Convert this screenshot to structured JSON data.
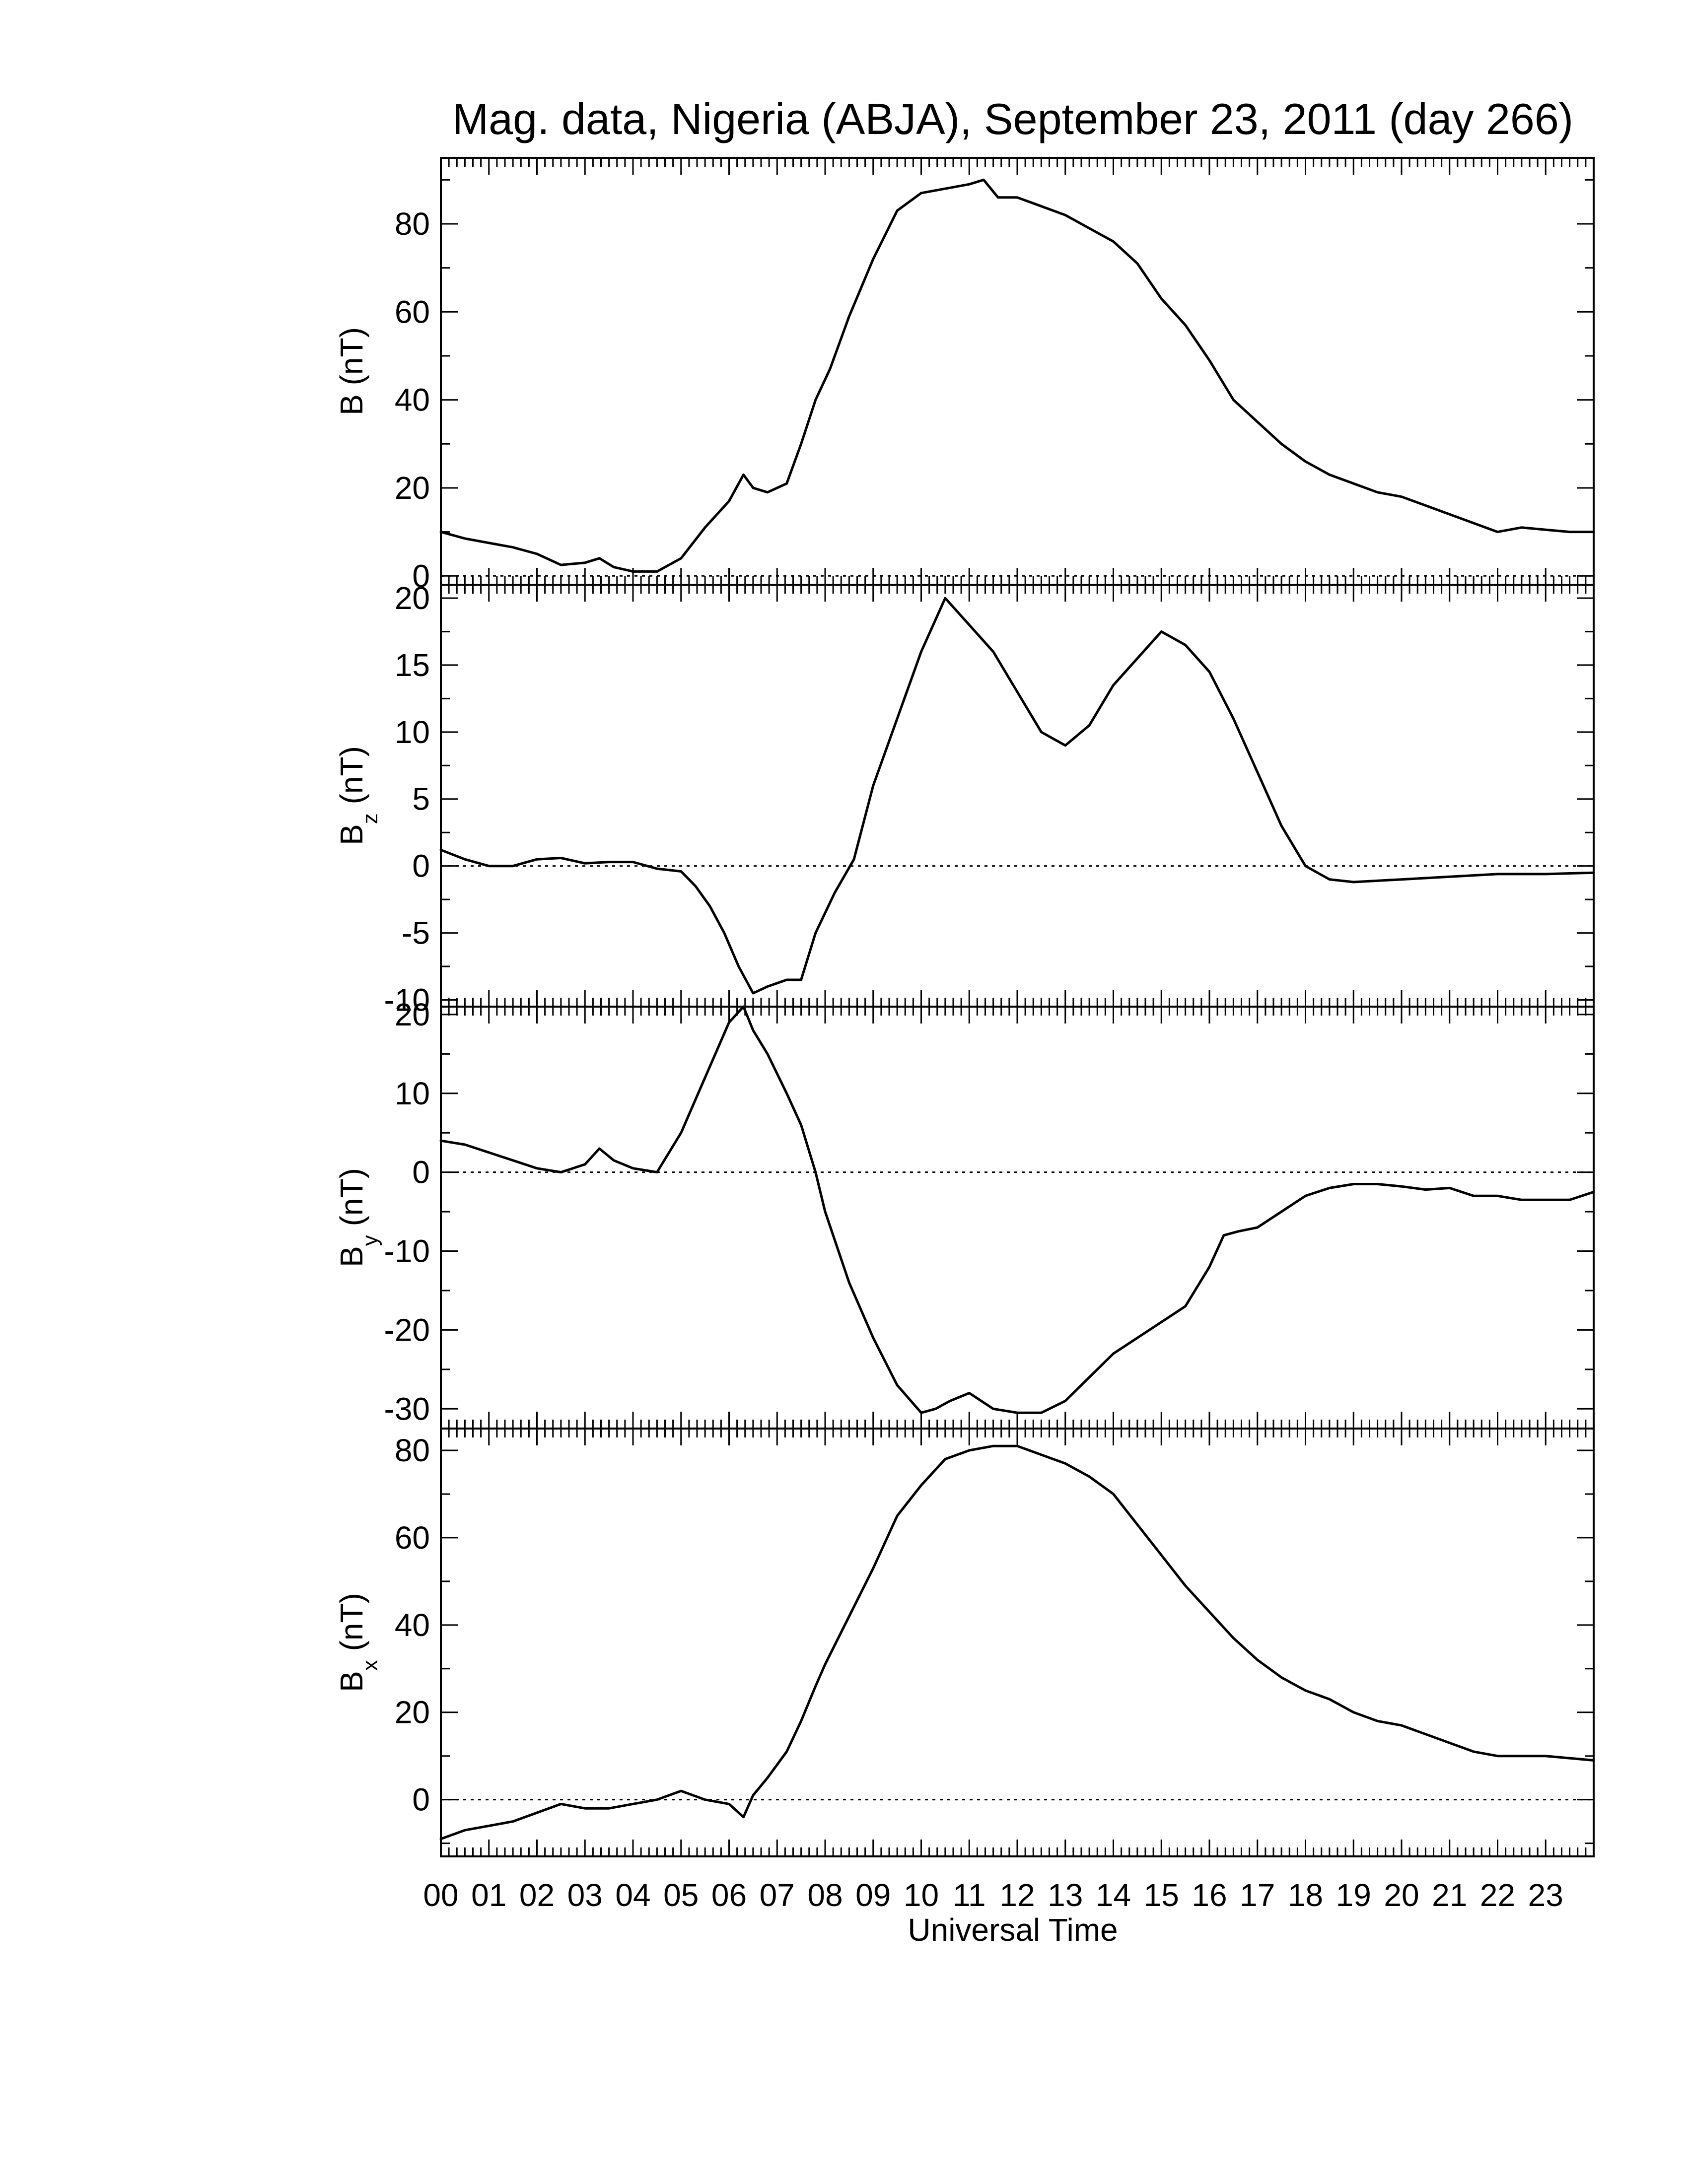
{
  "title": "Mag. data, Nigeria (ABJA), September 23, 2011 (day 266)",
  "xlabel": "Universal Time",
  "x_tick_labels": [
    "00",
    "01",
    "02",
    "03",
    "04",
    "05",
    "06",
    "07",
    "08",
    "09",
    "10",
    "11",
    "12",
    "13",
    "14",
    "15",
    "16",
    "17",
    "18",
    "19",
    "20",
    "21",
    "22",
    "23"
  ],
  "chart_data": [
    {
      "type": "line",
      "ylabel_main": "B",
      "ylabel_sub": "",
      "ylabel_unit": "(nT)",
      "xlim": [
        0,
        24
      ],
      "ylim": [
        -2,
        95
      ],
      "y_ticks": [
        0,
        20,
        40,
        60,
        80
      ],
      "zero_line": true,
      "series": [
        {
          "x": [
            0.0,
            0.5,
            1.0,
            1.5,
            2.0,
            2.5,
            3.0,
            3.3,
            3.6,
            4.0,
            4.5,
            5.0,
            5.5,
            6.0,
            6.3,
            6.5,
            6.8,
            7.2,
            7.5,
            7.8,
            8.1,
            8.5,
            9.0,
            9.5,
            10.0,
            10.5,
            11.0,
            11.3,
            11.6,
            12.0,
            12.5,
            13.0,
            13.5,
            14.0,
            14.5,
            15.0,
            15.5,
            16.0,
            16.5,
            17.0,
            17.5,
            18.0,
            18.5,
            19.0,
            19.5,
            20.0,
            20.5,
            21.0,
            21.5,
            22.0,
            22.5,
            23.0,
            23.5,
            24.0
          ],
          "y": [
            10,
            8.5,
            7.5,
            6.5,
            5,
            2.5,
            3,
            4,
            2,
            1,
            1,
            4,
            11,
            17,
            23,
            20,
            19,
            21,
            30,
            40,
            47,
            59,
            72,
            83,
            87,
            88,
            89,
            90,
            86,
            86,
            84,
            82,
            79,
            76,
            71,
            63,
            57,
            49,
            40,
            35,
            30,
            26,
            23,
            21,
            19,
            18,
            16,
            14,
            12,
            10,
            11,
            10.5,
            10,
            10
          ]
        }
      ]
    },
    {
      "type": "line",
      "ylabel_main": "B",
      "ylabel_sub": "z",
      "ylabel_unit": "(nT)",
      "xlim": [
        0,
        24
      ],
      "ylim": [
        -10.5,
        21
      ],
      "y_ticks": [
        -10,
        -5,
        0,
        5,
        10,
        15,
        20
      ],
      "zero_line": true,
      "series": [
        {
          "x": [
            0.0,
            0.5,
            1.0,
            1.5,
            2.0,
            2.5,
            3.0,
            3.5,
            4.0,
            4.5,
            5.0,
            5.3,
            5.6,
            5.9,
            6.2,
            6.5,
            6.8,
            7.2,
            7.5,
            7.8,
            8.2,
            8.6,
            9.0,
            9.5,
            10.0,
            10.5,
            11.0,
            11.5,
            12.0,
            12.5,
            13.0,
            13.5,
            14.0,
            14.5,
            15.0,
            15.5,
            16.0,
            16.5,
            17.0,
            17.5,
            18.0,
            18.5,
            19.0,
            20.0,
            21.0,
            22.0,
            23.0,
            24.0
          ],
          "y": [
            1.2,
            0.5,
            0,
            0,
            0.5,
            0.6,
            0.2,
            0.3,
            0.3,
            -0.2,
            -0.4,
            -1.5,
            -3,
            -5,
            -7.5,
            -9.5,
            -9,
            -8.5,
            -8.5,
            -5,
            -2,
            0.5,
            6,
            11,
            16,
            20,
            18,
            16,
            13,
            10,
            9,
            10.5,
            13.5,
            15.5,
            17.5,
            16.5,
            14.5,
            11,
            7,
            3,
            0,
            -1,
            -1.2,
            -1,
            -0.8,
            -0.6,
            -0.6,
            -0.5
          ]
        }
      ]
    },
    {
      "type": "line",
      "ylabel_main": "B",
      "ylabel_sub": "y",
      "ylabel_unit": "(nT)",
      "xlim": [
        0,
        24
      ],
      "ylim": [
        -32.5,
        21
      ],
      "y_ticks": [
        -30,
        -20,
        -10,
        0,
        10,
        20
      ],
      "zero_line": true,
      "series": [
        {
          "x": [
            0.0,
            0.5,
            1.0,
            1.5,
            2.0,
            2.5,
            3.0,
            3.3,
            3.6,
            4.0,
            4.5,
            5.0,
            5.5,
            6.0,
            6.3,
            6.5,
            6.8,
            7.2,
            7.5,
            7.8,
            8.0,
            8.5,
            9.0,
            9.5,
            10.0,
            10.3,
            10.6,
            11.0,
            11.5,
            12.0,
            12.5,
            13.0,
            13.5,
            14.0,
            14.5,
            15.0,
            15.5,
            16.0,
            16.3,
            16.6,
            17.0,
            17.5,
            18.0,
            18.5,
            19.0,
            19.5,
            20.0,
            20.5,
            21.0,
            21.5,
            22.0,
            22.5,
            23.0,
            23.5,
            24.0
          ],
          "y": [
            4,
            3.5,
            2.5,
            1.5,
            0.5,
            0,
            1,
            3,
            1.5,
            0.5,
            0,
            5,
            12,
            19,
            21,
            18,
            15,
            10,
            6,
            0,
            -5,
            -14,
            -21,
            -27,
            -30.5,
            -30,
            -29,
            -28,
            -30,
            -30.5,
            -30.5,
            -29,
            -26,
            -23,
            -21,
            -19,
            -17,
            -12,
            -8,
            -7.5,
            -7,
            -5,
            -3,
            -2,
            -1.5,
            -1.5,
            -1.8,
            -2.2,
            -2,
            -3,
            -3,
            -3.5,
            -3.5,
            -3.5,
            -2.5
          ]
        }
      ]
    },
    {
      "type": "line",
      "ylabel_main": "B",
      "ylabel_sub": "x",
      "ylabel_unit": "(nT)",
      "xlim": [
        0,
        24
      ],
      "ylim": [
        -13,
        85
      ],
      "y_ticks": [
        0,
        20,
        40,
        60,
        80
      ],
      "zero_line": true,
      "series": [
        {
          "x": [
            0.0,
            0.5,
            1.0,
            1.5,
            2.0,
            2.5,
            3.0,
            3.5,
            4.0,
            4.5,
            5.0,
            5.5,
            6.0,
            6.3,
            6.5,
            6.8,
            7.2,
            7.5,
            7.8,
            8.0,
            8.5,
            9.0,
            9.5,
            10.0,
            10.5,
            11.0,
            11.5,
            12.0,
            12.5,
            13.0,
            13.5,
            14.0,
            14.5,
            15.0,
            15.5,
            16.0,
            16.5,
            17.0,
            17.5,
            18.0,
            18.5,
            19.0,
            19.5,
            20.0,
            20.5,
            21.0,
            21.5,
            22.0,
            22.5,
            23.0,
            23.5,
            24.0
          ],
          "y": [
            -9,
            -7,
            -6,
            -5,
            -3,
            -1,
            -2,
            -2,
            -1,
            0,
            2,
            0,
            -1,
            -4,
            1,
            5,
            11,
            18,
            26,
            31,
            42,
            53,
            65,
            72,
            78,
            80,
            81,
            81,
            79,
            77,
            74,
            70,
            63,
            56,
            49,
            43,
            37,
            32,
            28,
            25,
            23,
            20,
            18,
            17,
            15,
            13,
            11,
            10,
            10,
            10,
            9.5,
            9
          ]
        }
      ]
    }
  ]
}
